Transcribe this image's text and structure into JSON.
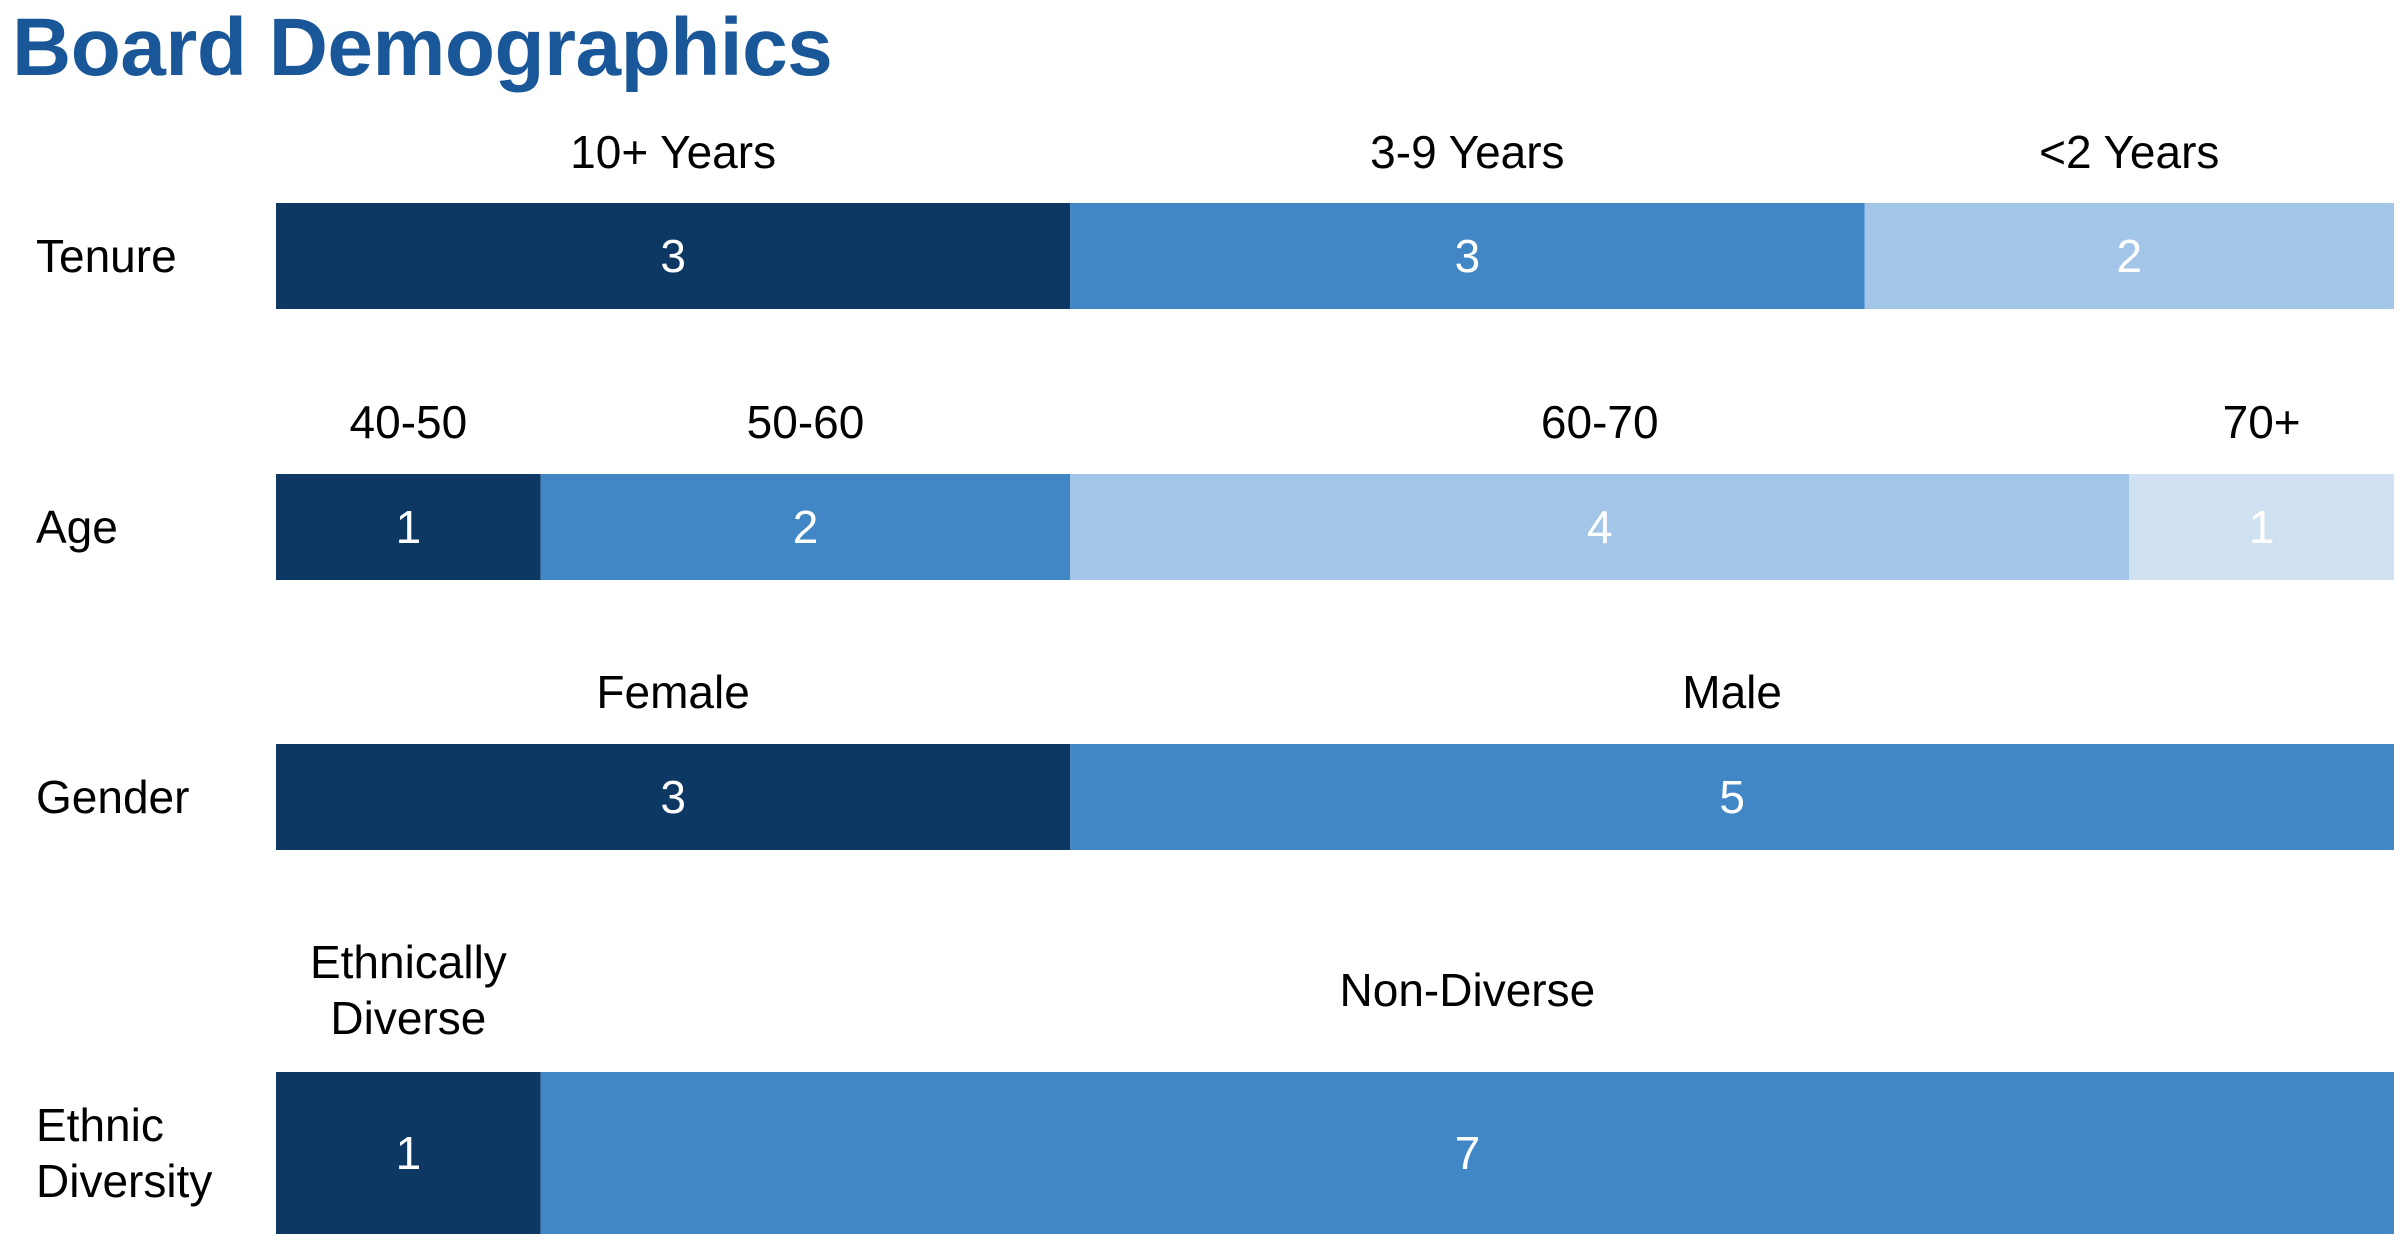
{
  "title": "Board Demographics",
  "chart_data": {
    "type": "bar",
    "orientation": "horizontal",
    "stacked": true,
    "title": "Board Demographics",
    "total": 8,
    "grid": false,
    "rows": [
      {
        "label": [
          "Tenure"
        ],
        "segments": [
          {
            "category": [
              "10+ Years"
            ],
            "value": 3,
            "color": "#0d3864",
            "text_color": "#ffffff"
          },
          {
            "category": [
              "3-9 Years"
            ],
            "value": 3,
            "color": "#4187c6",
            "text_color": "#ffffff"
          },
          {
            "category": [
              "<2 Years"
            ],
            "value": 2,
            "color": "#a3c5e7",
            "text_color": "#ffffff"
          }
        ]
      },
      {
        "label": [
          "Age"
        ],
        "segments": [
          {
            "category": [
              "40-50"
            ],
            "value": 1,
            "color": "#0d3864",
            "text_color": "#ffffff"
          },
          {
            "category": [
              "50-60"
            ],
            "value": 2,
            "color": "#4187c6",
            "text_color": "#ffffff"
          },
          {
            "category": [
              "60-70"
            ],
            "value": 4,
            "color": "#a3c5e7",
            "text_color": "#ffffff"
          },
          {
            "category": [
              "70+"
            ],
            "value": 1,
            "color": "#d0e1f2",
            "text_color": "#ffffff"
          }
        ]
      },
      {
        "label": [
          "Gender"
        ],
        "segments": [
          {
            "category": [
              "Female"
            ],
            "value": 3,
            "color": "#0d3864",
            "text_color": "#ffffff"
          },
          {
            "category": [
              "Male"
            ],
            "value": 5,
            "color": "#4187c6",
            "text_color": "#ffffff"
          }
        ]
      },
      {
        "label": [
          "Ethnic",
          "Diversity"
        ],
        "segments": [
          {
            "category": [
              "Ethnically",
              "Diverse"
            ],
            "value": 1,
            "color": "#0d3864",
            "text_color": "#ffffff"
          },
          {
            "category": [
              "Non-Diverse"
            ],
            "value": 7,
            "color": "#4187c6",
            "text_color": "#ffffff"
          }
        ]
      }
    ]
  }
}
